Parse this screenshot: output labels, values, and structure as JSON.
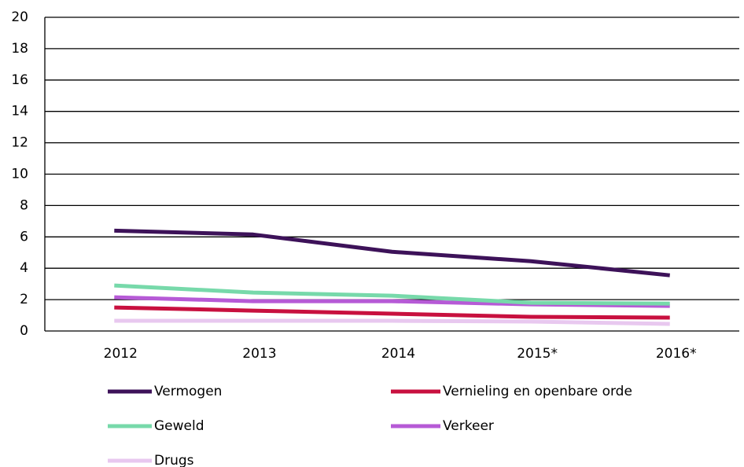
{
  "chart_data": {
    "type": "line",
    "categories": [
      "2012",
      "2013",
      "2014",
      "2015*",
      "2016*"
    ],
    "series": [
      {
        "name": "Vermogen",
        "color": "#3d1259",
        "values": [
          6.4,
          6.15,
          5.05,
          4.45,
          3.55
        ]
      },
      {
        "name": "Vernieling en openbare orde",
        "color": "#c8103f",
        "values": [
          1.5,
          1.3,
          1.1,
          0.9,
          0.85
        ]
      },
      {
        "name": "Geweld",
        "color": "#77d9aa",
        "values": [
          2.9,
          2.45,
          2.25,
          1.8,
          1.75
        ]
      },
      {
        "name": "Verkeer",
        "color": "#b65ad6",
        "values": [
          2.15,
          1.9,
          1.9,
          1.7,
          1.6
        ]
      },
      {
        "name": "Drugs",
        "color": "#e8c8ef",
        "values": [
          0.65,
          0.65,
          0.65,
          0.6,
          0.45
        ]
      }
    ],
    "ylim": [
      0,
      20
    ],
    "yticks": [
      0,
      2,
      4,
      6,
      8,
      10,
      12,
      14,
      16,
      18,
      20
    ],
    "grid": true
  }
}
